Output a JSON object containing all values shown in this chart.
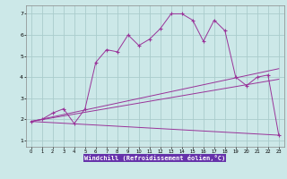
{
  "xlabel": "Windchill (Refroidissement éolien,°C)",
  "background_color": "#cce8e8",
  "plot_bg_color": "#cce8e8",
  "grid_color": "#aacccc",
  "line_color": "#993399",
  "xlabel_bg": "#6633aa",
  "xlabel_fg": "#ffffff",
  "xlim": [
    -0.5,
    23.5
  ],
  "ylim": [
    0.7,
    7.4
  ],
  "xticks": [
    0,
    1,
    2,
    3,
    4,
    5,
    6,
    7,
    8,
    9,
    10,
    11,
    12,
    13,
    14,
    15,
    16,
    17,
    18,
    19,
    20,
    21,
    22,
    23
  ],
  "yticks": [
    1,
    2,
    3,
    4,
    5,
    6,
    7
  ],
  "series1_x": [
    0,
    1,
    2,
    3,
    4,
    5,
    6,
    7,
    8,
    9,
    10,
    11,
    12,
    13,
    14,
    15,
    16,
    17,
    18,
    19,
    20,
    21,
    22,
    23
  ],
  "series1_y": [
    1.9,
    2.0,
    2.3,
    2.5,
    1.8,
    2.5,
    4.7,
    5.3,
    5.2,
    6.0,
    5.5,
    5.8,
    6.3,
    7.0,
    7.0,
    6.7,
    5.7,
    6.7,
    6.2,
    4.0,
    3.6,
    4.0,
    4.1,
    1.25
  ],
  "series2_x": [
    0,
    23
  ],
  "series2_y": [
    1.9,
    4.4
  ],
  "series3_x": [
    0,
    23
  ],
  "series3_y": [
    1.9,
    3.9
  ],
  "series4_x": [
    0,
    23
  ],
  "series4_y": [
    1.9,
    1.25
  ]
}
